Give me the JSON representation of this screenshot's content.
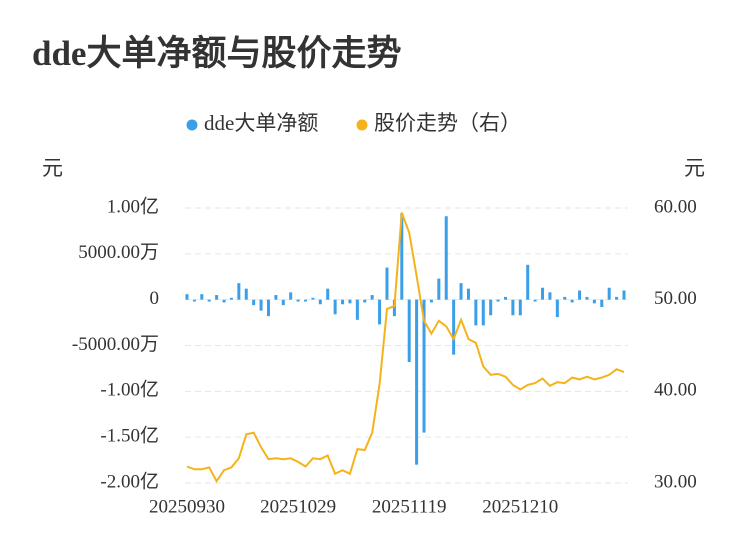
{
  "chart_data": {
    "type": "bar-line",
    "title": "dde大单净额与股价走势",
    "y_unit": "元",
    "y2_unit": "元",
    "categories": [
      "20250930",
      null,
      null,
      null,
      null,
      null,
      null,
      null,
      null,
      null,
      null,
      null,
      null,
      null,
      null,
      "20251029",
      null,
      null,
      null,
      null,
      null,
      null,
      null,
      null,
      null,
      null,
      null,
      null,
      null,
      null,
      "20251119",
      null,
      null,
      null,
      null,
      null,
      null,
      null,
      null,
      null,
      null,
      null,
      null,
      null,
      null,
      "20251210",
      null,
      null,
      null,
      null,
      null,
      null,
      null,
      null,
      null,
      null,
      null,
      null,
      null,
      null
    ],
    "series": [
      {
        "name": "dde大单净额",
        "type": "bar",
        "color": "#3a9ee8",
        "axis": "y",
        "values": [
          6000000,
          -2000000,
          6000000,
          -2000000,
          5000000,
          -3000000,
          2000000,
          18000000,
          12000000,
          -6000000,
          -12000000,
          -18000000,
          5000000,
          -6000000,
          8000000,
          -2000000,
          -2000000,
          2000000,
          -5000000,
          12000000,
          -16000000,
          -5000000,
          -4000000,
          -22000000,
          -3000000,
          5000000,
          -27000000,
          35000000,
          -18000000,
          94000000,
          -68000000,
          -180000000,
          -145000000,
          -3000000,
          23000000,
          91000000,
          -60000000,
          18000000,
          12000000,
          -28000000,
          -28000000,
          -17000000,
          -2000000,
          3000000,
          -17000000,
          -17000000,
          38000000,
          -2000000,
          13000000,
          8000000,
          -19000000,
          3000000,
          -3000000,
          10000000,
          3000000,
          -4000000,
          -8000000,
          13000000,
          3000000,
          10000000
        ]
      },
      {
        "name": "股价走势（右）",
        "type": "line",
        "color": "#f5b31b",
        "axis": "y2",
        "values": [
          31.8,
          31.5,
          31.5,
          31.7,
          30.2,
          31.4,
          31.7,
          32.7,
          35.3,
          35.5,
          33.9,
          32.6,
          32.7,
          32.6,
          32.7,
          32.3,
          31.8,
          32.7,
          32.6,
          33.0,
          31.0,
          31.4,
          31.0,
          33.7,
          33.6,
          35.5,
          40.8,
          49.0,
          49.3,
          59.5,
          57.3,
          52.6,
          47.7,
          46.3,
          47.7,
          47.1,
          45.7,
          47.8,
          45.7,
          45.3,
          42.7,
          41.8,
          41.9,
          41.6,
          40.7,
          40.2,
          40.7,
          40.9,
          41.4,
          40.6,
          41.0,
          40.9,
          41.5,
          41.3,
          41.6,
          41.3,
          41.5,
          41.8,
          42.4,
          42.1
        ]
      }
    ],
    "ylim": [
      -200000000,
      100000000
    ],
    "yticks": [
      {
        "value": 100000000,
        "label": "1.00亿"
      },
      {
        "value": 50000000,
        "label": "5000.00万"
      },
      0,
      {
        "value": -50000000,
        "label": "-5000.00万"
      },
      {
        "value": -100000000,
        "label": "-1.00亿"
      },
      {
        "value": -150000000,
        "label": "-1.50亿"
      },
      {
        "value": -200000000,
        "label": "-2.00亿"
      }
    ],
    "y2lim": [
      30,
      60
    ],
    "y2ticks": [
      {
        "value": 60,
        "label": "60.00"
      },
      {
        "value": 50,
        "label": "50.00"
      },
      {
        "value": 40,
        "label": "40.00"
      },
      {
        "value": 30,
        "label": "30.00"
      }
    ],
    "grid": true
  }
}
